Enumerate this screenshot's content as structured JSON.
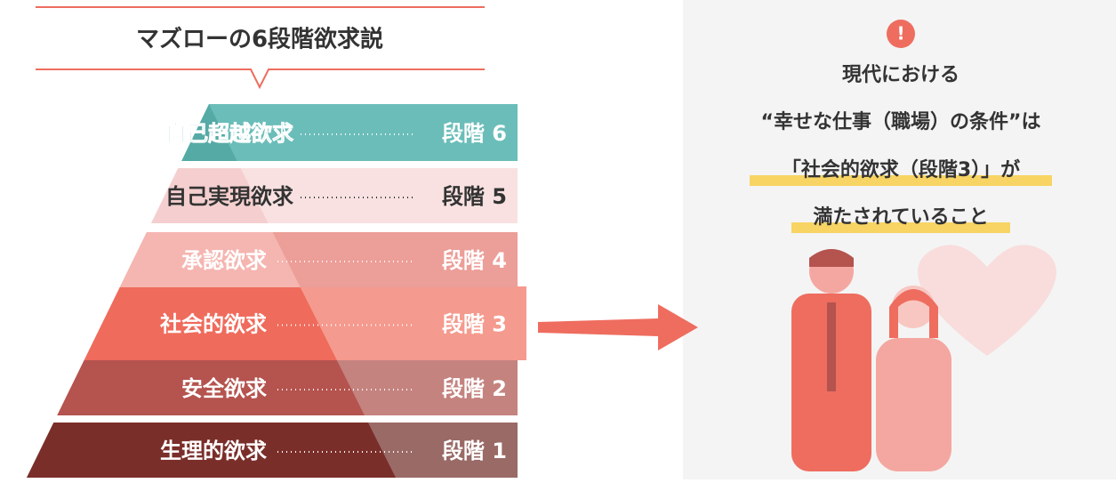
{
  "title": "マズローの6段階欲求説",
  "levels": [
    {
      "name": "生理的欲求",
      "stage": "段階 1"
    },
    {
      "name": "安全欲求",
      "stage": "段階 2"
    },
    {
      "name": "社会的欲求",
      "stage": "段階 3"
    },
    {
      "name": "承認欲求",
      "stage": "段階 4"
    },
    {
      "name": "自己実現欲求",
      "stage": "段階 5"
    },
    {
      "name": "自己超越欲求",
      "stage": "段階 6"
    }
  ],
  "message": {
    "icon": "!",
    "lines": [
      "現代における",
      "“幸せな仕事（職場）の条件”は",
      "「社会的欲求（段階3）」が",
      "満たされていること"
    ]
  }
}
